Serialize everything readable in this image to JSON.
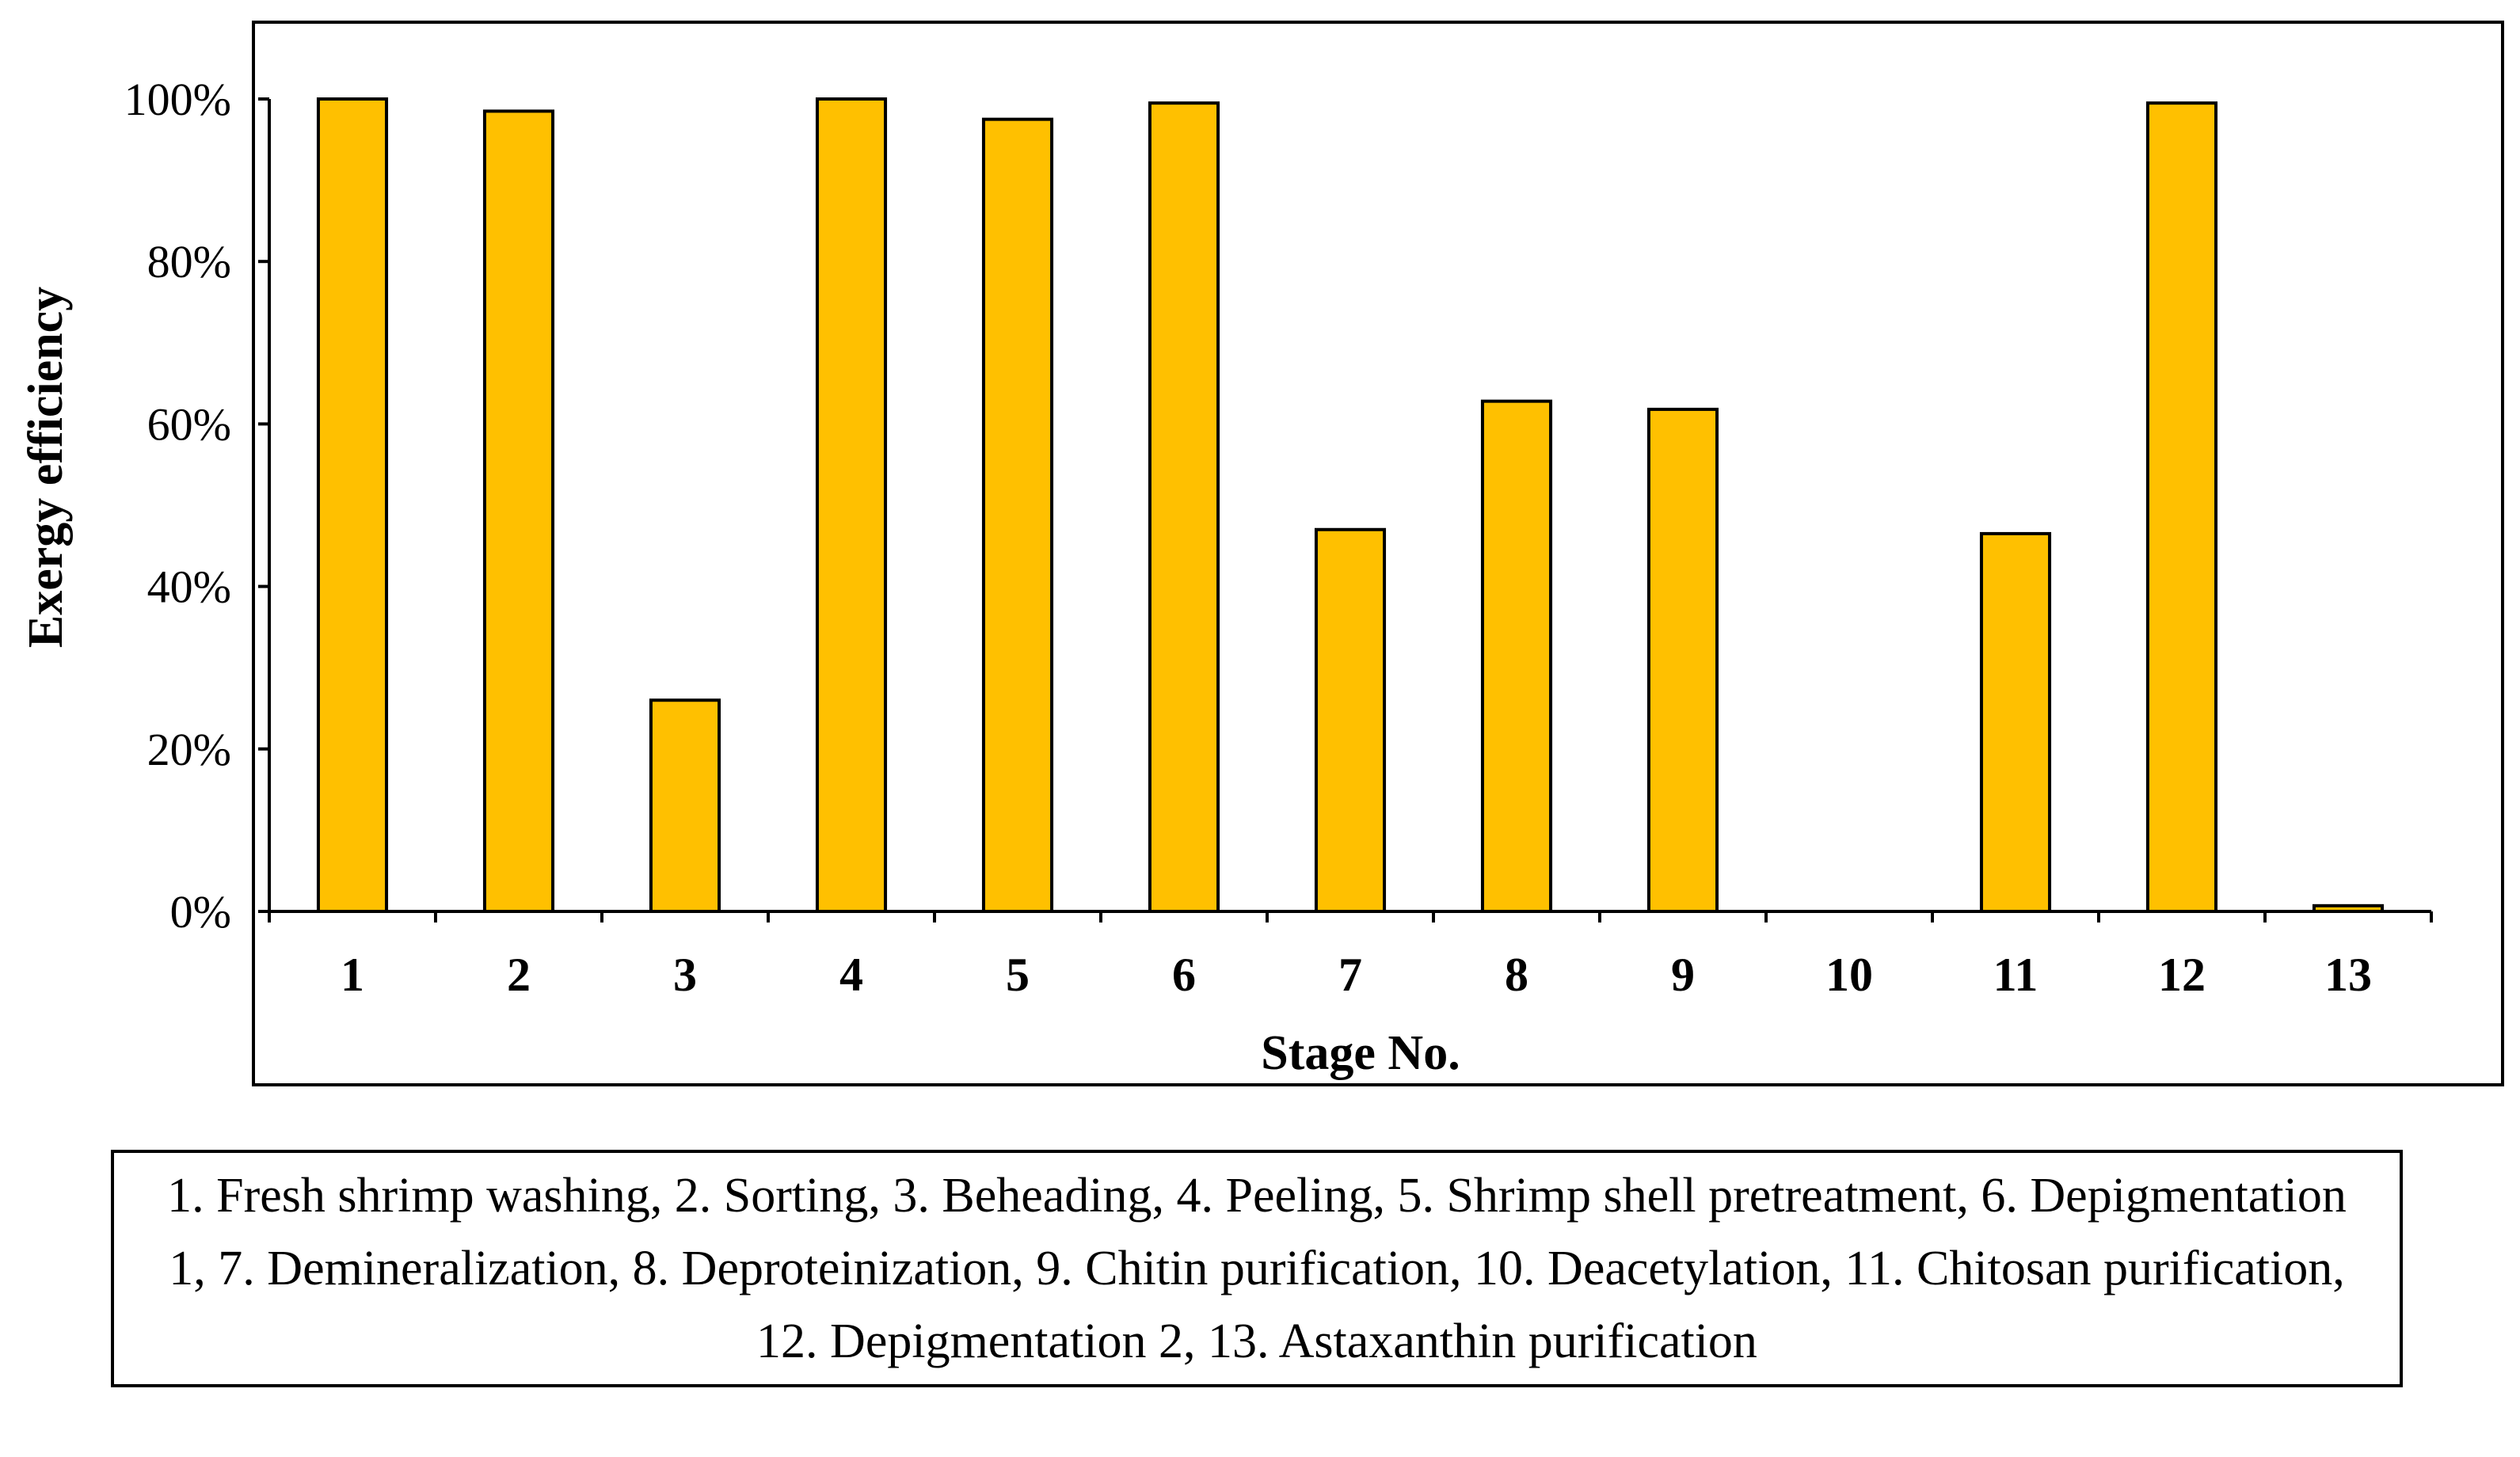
{
  "chart_data": {
    "type": "bar",
    "categories": [
      "1",
      "2",
      "3",
      "4",
      "5",
      "6",
      "7",
      "8",
      "9",
      "10",
      "11",
      "12",
      "13"
    ],
    "values": [
      100,
      98.5,
      26,
      100,
      97.5,
      99.5,
      47,
      62.8,
      61.8,
      0,
      46.5,
      99.5,
      0.7
    ],
    "title": "",
    "xlabel": "Stage No.",
    "ylabel": "Exergy efficiency",
    "ylim": [
      0,
      100
    ],
    "yticks": [
      "0%",
      "20%",
      "40%",
      "60%",
      "80%",
      "100%"
    ],
    "grid": false,
    "bar_color": "#ffc000"
  },
  "caption": "1. Fresh shrimp washing, 2. Sorting, 3. Beheading, 4. Peeling, 5. Shrimp shell pretreatment, 6. Depigmentation 1, 7. Demineralization, 8. Deproteinization, 9. Chitin purification, 10. Deacetylation, 11. Chitosan purification, 12. Depigmentation 2, 13. Astaxanthin purification"
}
